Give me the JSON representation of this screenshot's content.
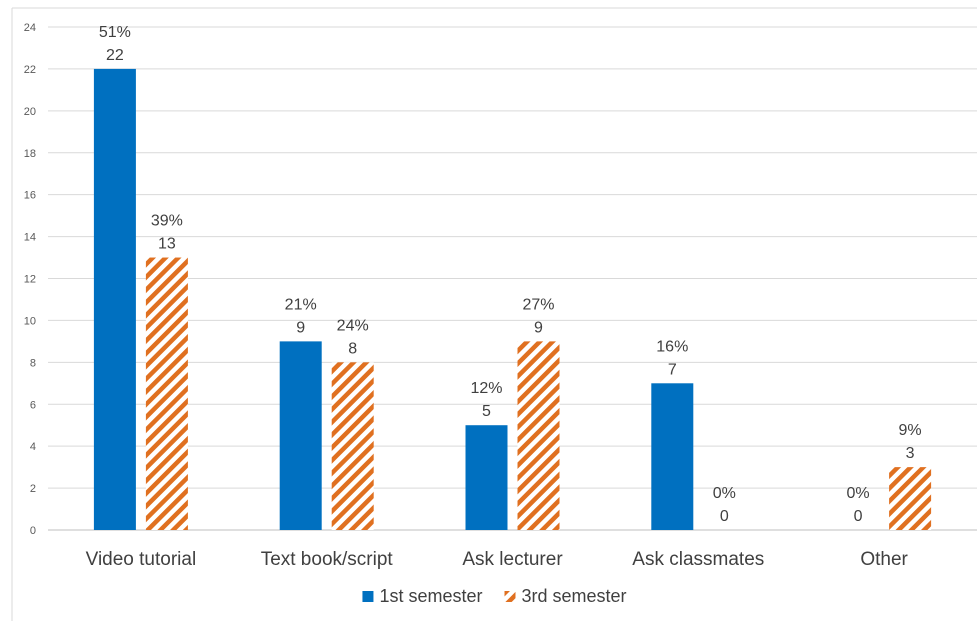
{
  "chart_data": {
    "type": "bar",
    "categories": [
      "Video tutorial",
      "Text book/script",
      "Ask lecturer",
      "Ask classmates",
      "Other"
    ],
    "series": [
      {
        "name": "1st semester",
        "values": [
          22,
          9,
          5,
          7,
          0
        ],
        "percent_labels": [
          "51%",
          "21%",
          "12%",
          "16%",
          "0%"
        ],
        "color": "#0070C0",
        "pattern": "solid"
      },
      {
        "name": "3rd semester",
        "values": [
          13,
          8,
          9,
          0,
          3
        ],
        "percent_labels": [
          "39%",
          "24%",
          "27%",
          "0%",
          "9%"
        ],
        "color": "#E07020",
        "pattern": "diagonal-stripes"
      }
    ],
    "title": "",
    "xlabel": "",
    "ylabel": "",
    "ylim": [
      0,
      24
    ],
    "yticks": [
      0,
      2,
      4,
      6,
      8,
      10,
      12,
      14,
      16,
      18,
      20,
      22,
      24
    ],
    "grid": true,
    "legend": "bottom-center"
  }
}
